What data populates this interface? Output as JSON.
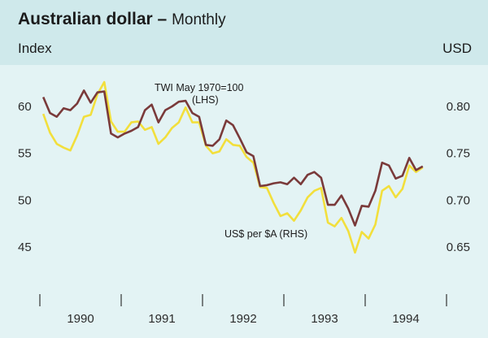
{
  "header": {
    "title": "Australian dollar",
    "title_separator": " – ",
    "subtitle": "Monthly",
    "left_unit": "Index",
    "right_unit": "USD"
  },
  "colors": {
    "header_bg": "#cfe9eb",
    "plot_bg": "#e3f3f4",
    "twi_line": "#7a3a3a",
    "usd_line": "#f2df3c"
  },
  "chart_data": {
    "type": "line",
    "title": "Australian dollar",
    "subtitle": "Monthly",
    "x_start": "1990-01",
    "x_end": "1994-08",
    "xtick_labels": [
      "1990",
      "1991",
      "1992",
      "1993",
      "1994"
    ],
    "left_axis": {
      "label": "Index",
      "ylim": [
        40,
        65
      ],
      "ticks": [
        45,
        50,
        55,
        60
      ]
    },
    "right_axis": {
      "label": "USD",
      "ylim": [
        0.6,
        0.85
      ],
      "ticks": [
        "0.65",
        "0.70",
        "0.75",
        "0.80"
      ]
    },
    "grid": false,
    "legend": "inline annotations",
    "annotations": [
      {
        "text_line1": "TWI May 1970=100",
        "text_line2": "(LHS)",
        "series": "TWI May 1970=100"
      },
      {
        "text_line1": "US$ per $A (RHS)",
        "text_line2": "",
        "series": "US$ per $A"
      }
    ],
    "series": [
      {
        "name": "TWI May 1970=100",
        "axis": "left",
        "start": "1990-01",
        "values": [
          61.0,
          59.3,
          58.9,
          59.8,
          59.6,
          60.3,
          61.7,
          60.4,
          61.5,
          61.6,
          57.1,
          56.7,
          57.1,
          57.4,
          57.8,
          59.6,
          60.2,
          58.3,
          59.6,
          60.0,
          60.5,
          60.6,
          59.3,
          58.9,
          55.9,
          55.8,
          56.5,
          58.5,
          58.0,
          56.6,
          55.1,
          54.7,
          51.5,
          51.6,
          51.8,
          51.9,
          51.7,
          52.4,
          51.7,
          52.7,
          53.0,
          52.4,
          49.5,
          49.5,
          50.5,
          49.1,
          47.3,
          49.4,
          49.3,
          51.0,
          54.0,
          53.7,
          52.3,
          52.6,
          54.5,
          53.2,
          53.6
        ]
      },
      {
        "name": "US$ per $A",
        "axis": "right",
        "start": "1990-01",
        "values": [
          0.792,
          0.772,
          0.76,
          0.756,
          0.753,
          0.769,
          0.789,
          0.791,
          0.813,
          0.826,
          0.784,
          0.773,
          0.773,
          0.783,
          0.784,
          0.775,
          0.778,
          0.76,
          0.767,
          0.777,
          0.783,
          0.799,
          0.783,
          0.783,
          0.758,
          0.75,
          0.752,
          0.765,
          0.759,
          0.758,
          0.746,
          0.74,
          0.714,
          0.713,
          0.697,
          0.683,
          0.686,
          0.678,
          0.689,
          0.703,
          0.71,
          0.713,
          0.676,
          0.672,
          0.681,
          0.667,
          0.644,
          0.666,
          0.659,
          0.674,
          0.71,
          0.715,
          0.703,
          0.712,
          0.737,
          0.73,
          0.735
        ]
      }
    ]
  }
}
